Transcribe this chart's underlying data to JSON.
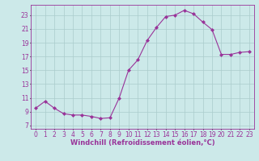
{
  "x": [
    0,
    1,
    2,
    3,
    4,
    5,
    6,
    7,
    8,
    9,
    10,
    11,
    12,
    13,
    14,
    15,
    16,
    17,
    18,
    19,
    20,
    21,
    22,
    23
  ],
  "y": [
    9.5,
    10.5,
    9.5,
    8.7,
    8.5,
    8.5,
    8.3,
    8.0,
    8.1,
    11.0,
    15.0,
    16.5,
    19.3,
    21.2,
    22.8,
    23.0,
    23.7,
    23.2,
    22.0,
    20.9,
    17.3,
    17.3,
    17.6,
    17.7
  ],
  "line_color": "#993399",
  "marker": "D",
  "marker_size": 2,
  "bg_color": "#cce9e9",
  "grid_color": "#aacccc",
  "xlabel": "Windchill (Refroidissement éolien,°C)",
  "xlabel_fontsize": 6.0,
  "tick_color": "#993399",
  "tick_fontsize": 5.5,
  "yticks": [
    7,
    9,
    11,
    13,
    15,
    17,
    19,
    21,
    23
  ],
  "ylim": [
    6.5,
    24.5
  ],
  "xlim": [
    -0.5,
    23.5
  ]
}
